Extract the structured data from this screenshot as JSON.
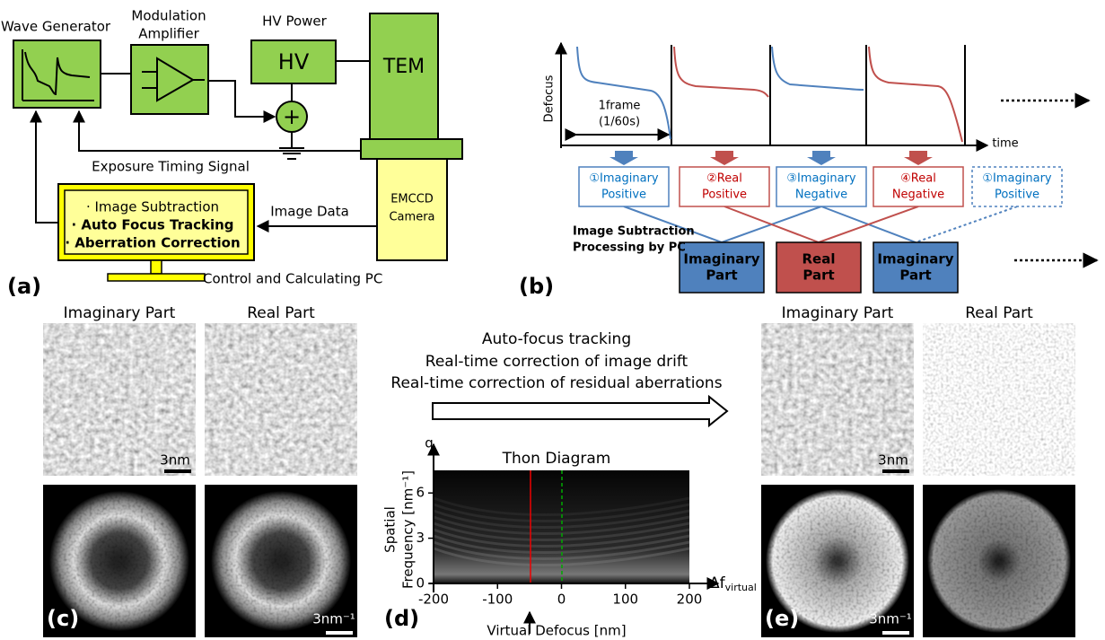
{
  "panel_a": {
    "label": "(a)",
    "wave_generator": "Wave Generator",
    "modulation_amplifier": [
      "Modulation",
      "Amplifier"
    ],
    "hv_power": "HV Power",
    "hv": "HV",
    "tem": "TEM",
    "adder": "+",
    "exposure_timing_signal": "Exposure Timing Signal",
    "emccd_camera": [
      "EMCCD",
      "Camera"
    ],
    "image_data": "Image Data",
    "pc_tasks": [
      "· Image Subtraction",
      "· Auto Focus Tracking",
      "· Aberration Correction"
    ],
    "pc_label": "Control and Calculating PC"
  },
  "panel_b": {
    "label": "(b)",
    "y_label": "Defocus",
    "x_label": "time",
    "frame": [
      "1frame",
      "(1/60s)"
    ],
    "frames": [
      [
        "①Imaginary",
        "Positive"
      ],
      [
        "②Real",
        "Positive"
      ],
      [
        "③Imaginary",
        "Negative"
      ],
      [
        "④Real",
        "Negative"
      ],
      [
        "①Imaginary",
        "Positive"
      ]
    ],
    "processing": [
      "Image Subtraction",
      "Processing by PC"
    ],
    "parts": [
      [
        "Imaginary",
        "Part"
      ],
      [
        "Real",
        "Part"
      ],
      [
        "Imaginary",
        "Part"
      ]
    ]
  },
  "panel_c": {
    "label": "(c)",
    "titles": [
      "Imaginary Part",
      "Real Part"
    ],
    "scale_real": "3nm",
    "scale_reciprocal": "3nm⁻¹"
  },
  "middle": {
    "lines": [
      "Auto-focus tracking",
      "Real-time correction of image drift",
      "Real-time correction of residual aberrations"
    ]
  },
  "panel_d": {
    "label": "(d)",
    "title": "Thon Diagram",
    "y_symbol": "q",
    "y_label": [
      "Spatial",
      "Frequency [nm⁻¹]"
    ],
    "x_symbol": "Δf",
    "x_symbol_sub": "virtual",
    "x_label": "Virtual Defocus [nm]",
    "xlim": [
      -200,
      200
    ],
    "ylim": [
      0,
      7.5
    ],
    "xticks": [
      -200,
      -100,
      0,
      100,
      200
    ],
    "yticks": [
      0,
      3,
      6
    ]
  },
  "panel_e": {
    "label": "(e)",
    "titles": [
      "Imaginary Part",
      "Real Part"
    ],
    "scale_real": "3nm",
    "scale_reciprocal": "3nm⁻¹"
  }
}
